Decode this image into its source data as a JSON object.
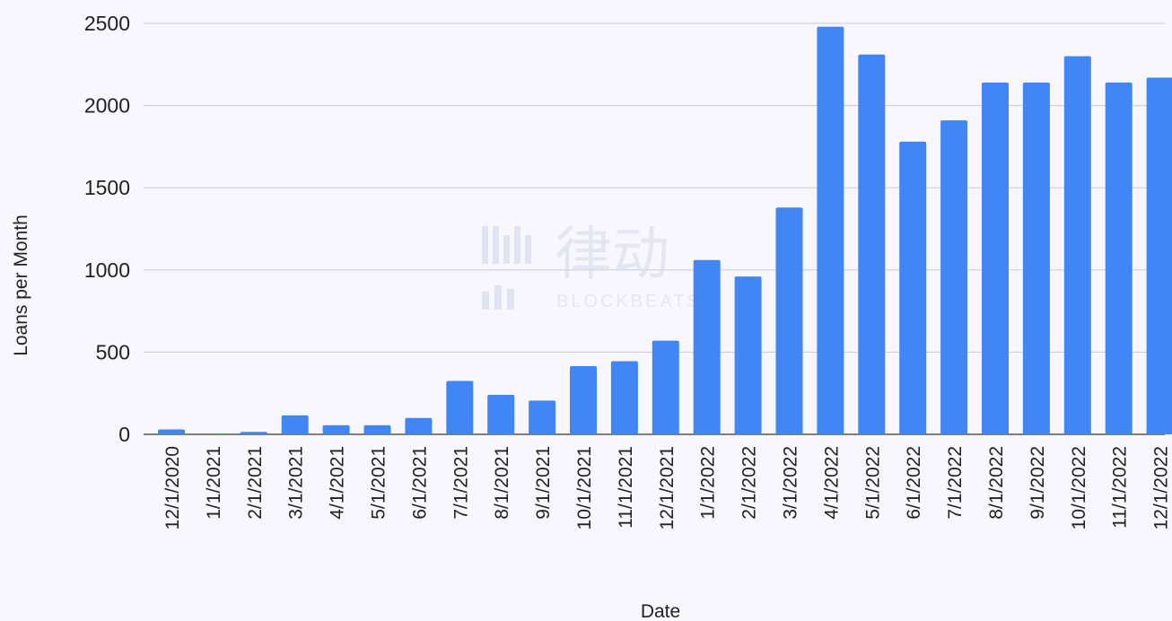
{
  "chart_data": {
    "type": "bar",
    "title": "",
    "xlabel": "Date",
    "ylabel": "Loans per Month",
    "ylim": [
      0,
      2500
    ],
    "yticks": [
      "0",
      "500",
      "1000",
      "1500",
      "2000",
      "2500"
    ],
    "grid": true,
    "bar_color": "#4285f4",
    "categories": [
      "12/1/2020",
      "1/1/2021",
      "2/1/2021",
      "3/1/2021",
      "4/1/2021",
      "5/1/2021",
      "6/1/2021",
      "7/1/2021",
      "8/1/2021",
      "9/1/2021",
      "10/1/2021",
      "11/1/2021",
      "12/1/2021",
      "1/1/2022",
      "2/1/2022",
      "3/1/2022",
      "4/1/2022",
      "5/1/2022",
      "6/1/2022",
      "7/1/2022",
      "8/1/2022",
      "9/1/2022",
      "10/1/2022",
      "11/1/2022",
      "12/1/2022"
    ],
    "values": [
      30,
      5,
      15,
      115,
      55,
      55,
      100,
      325,
      240,
      205,
      415,
      445,
      570,
      1060,
      960,
      1380,
      2480,
      2310,
      1780,
      1910,
      2140,
      2140,
      2300,
      2140,
      2170
    ]
  },
  "watermark": {
    "cjk": "律动",
    "latin": "BLOCKBEATS"
  }
}
